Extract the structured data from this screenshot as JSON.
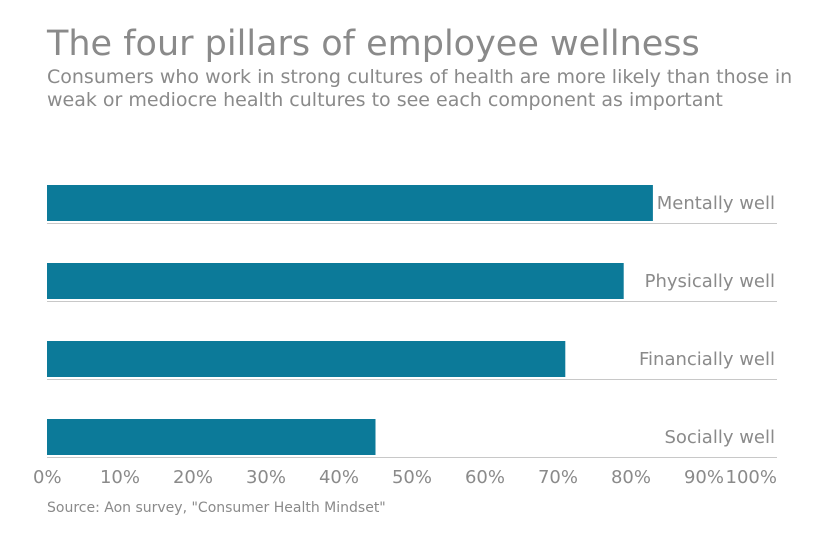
{
  "title": "The four pillars of employee wellness",
  "subtitle": "Consumers who work in strong cultures of health are more likely than those in weak or mediocre health cultures to see each component as important",
  "source": "Source: Aon survey, \"Consumer Health Mindset\"",
  "colors": {
    "bar": "#0c7a99",
    "text": "#8a8a8a",
    "grid": "#c8c8c8"
  },
  "chart_data": {
    "type": "bar",
    "orientation": "horizontal",
    "categories": [
      "Mentally well",
      "Physically well",
      "Financially well",
      "Socially well"
    ],
    "values": [
      83,
      79,
      71,
      45
    ],
    "value_unit": "%",
    "xlim": [
      0,
      100
    ],
    "xticks": [
      "0%",
      "10%",
      "20%",
      "30%",
      "40%",
      "50%",
      "60%",
      "70%",
      "80%",
      "90%",
      "100%"
    ],
    "category_label_position": "right",
    "grid": false,
    "legend": false
  }
}
